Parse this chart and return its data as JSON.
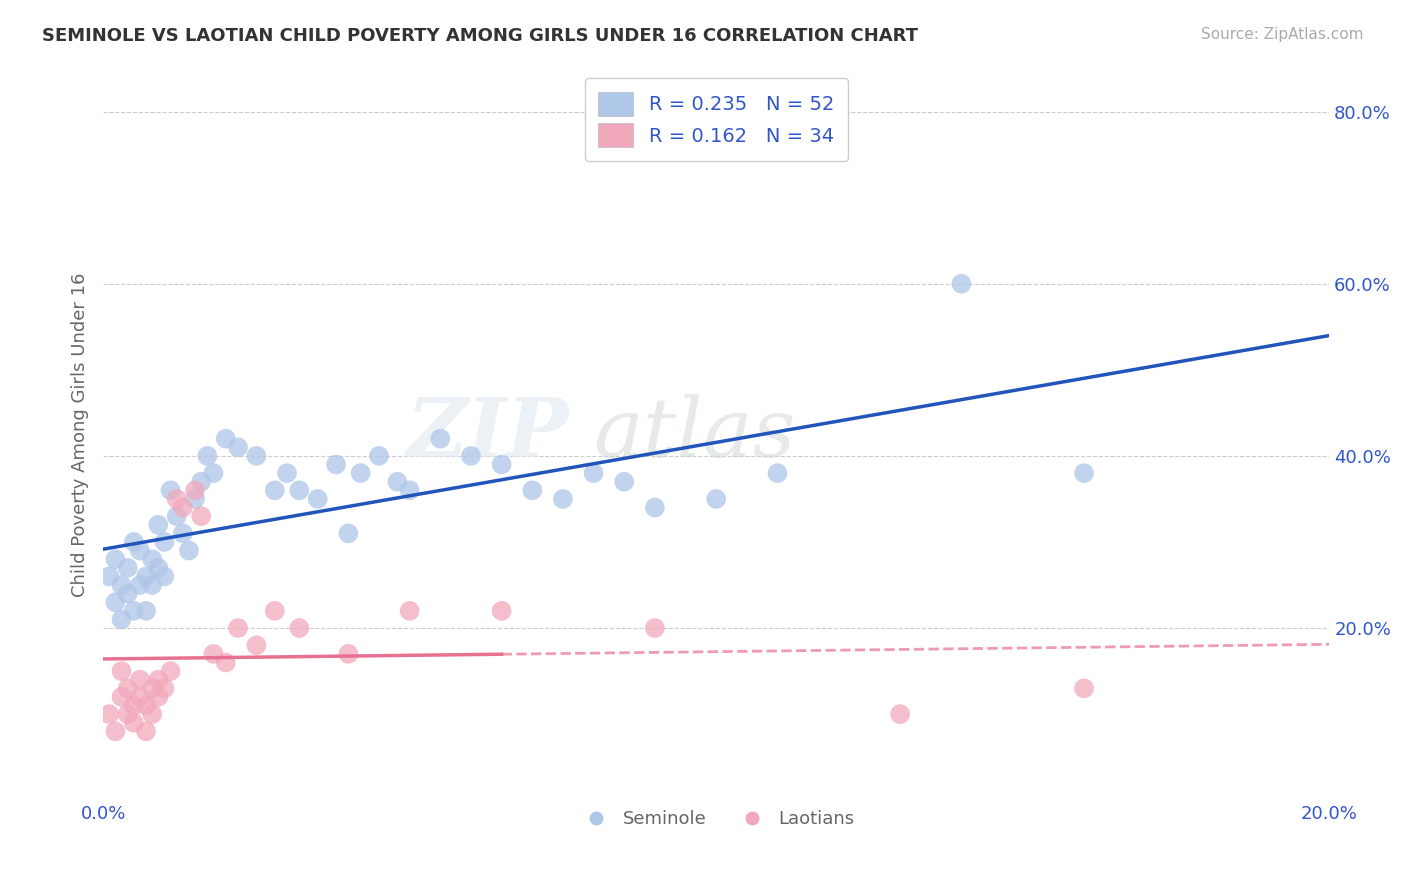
{
  "title": "SEMINOLE VS LAOTIAN CHILD POVERTY AMONG GIRLS UNDER 16 CORRELATION CHART",
  "source": "Source: ZipAtlas.com",
  "ylabel": "Child Poverty Among Girls Under 16",
  "xlim": [
    0.0,
    0.2
  ],
  "ylim": [
    0.0,
    0.85
  ],
  "seminole_R": 0.235,
  "seminole_N": 52,
  "laotian_R": 0.162,
  "laotian_N": 34,
  "seminole_color": "#aec6e8",
  "laotian_color": "#f2a8bc",
  "seminole_line_color": "#2255bb",
  "laotian_line_color": "#e87090",
  "seminole_x": [
    0.001,
    0.002,
    0.002,
    0.003,
    0.003,
    0.004,
    0.004,
    0.005,
    0.005,
    0.006,
    0.006,
    0.007,
    0.007,
    0.008,
    0.008,
    0.009,
    0.009,
    0.01,
    0.01,
    0.011,
    0.012,
    0.013,
    0.014,
    0.015,
    0.016,
    0.017,
    0.018,
    0.02,
    0.022,
    0.025,
    0.028,
    0.03,
    0.032,
    0.035,
    0.038,
    0.04,
    0.042,
    0.045,
    0.048,
    0.05,
    0.055,
    0.06,
    0.065,
    0.07,
    0.075,
    0.08,
    0.085,
    0.09,
    0.1,
    0.11,
    0.14,
    0.16
  ],
  "seminole_y": [
    0.26,
    0.23,
    0.28,
    0.21,
    0.25,
    0.24,
    0.27,
    0.22,
    0.3,
    0.25,
    0.29,
    0.26,
    0.22,
    0.28,
    0.25,
    0.32,
    0.27,
    0.3,
    0.26,
    0.36,
    0.33,
    0.31,
    0.29,
    0.35,
    0.37,
    0.4,
    0.38,
    0.42,
    0.41,
    0.4,
    0.36,
    0.38,
    0.36,
    0.35,
    0.39,
    0.31,
    0.38,
    0.4,
    0.37,
    0.36,
    0.42,
    0.4,
    0.39,
    0.36,
    0.35,
    0.38,
    0.37,
    0.34,
    0.35,
    0.38,
    0.6,
    0.38
  ],
  "laotian_x": [
    0.001,
    0.002,
    0.003,
    0.003,
    0.004,
    0.004,
    0.005,
    0.005,
    0.006,
    0.006,
    0.007,
    0.007,
    0.008,
    0.008,
    0.009,
    0.009,
    0.01,
    0.011,
    0.012,
    0.013,
    0.015,
    0.016,
    0.018,
    0.02,
    0.022,
    0.025,
    0.028,
    0.032,
    0.04,
    0.05,
    0.065,
    0.09,
    0.13,
    0.16
  ],
  "laotian_y": [
    0.1,
    0.08,
    0.12,
    0.15,
    0.1,
    0.13,
    0.09,
    0.11,
    0.12,
    0.14,
    0.08,
    0.11,
    0.13,
    0.1,
    0.14,
    0.12,
    0.13,
    0.15,
    0.35,
    0.34,
    0.36,
    0.33,
    0.17,
    0.16,
    0.2,
    0.18,
    0.22,
    0.2,
    0.17,
    0.22,
    0.22,
    0.2,
    0.1,
    0.13
  ],
  "watermark_zip": "ZIP",
  "watermark_atlas": "atlas",
  "background_color": "#ffffff",
  "grid_color": "#cccccc",
  "legend_top_color": "#3355cc",
  "tick_color": "#3355cc"
}
